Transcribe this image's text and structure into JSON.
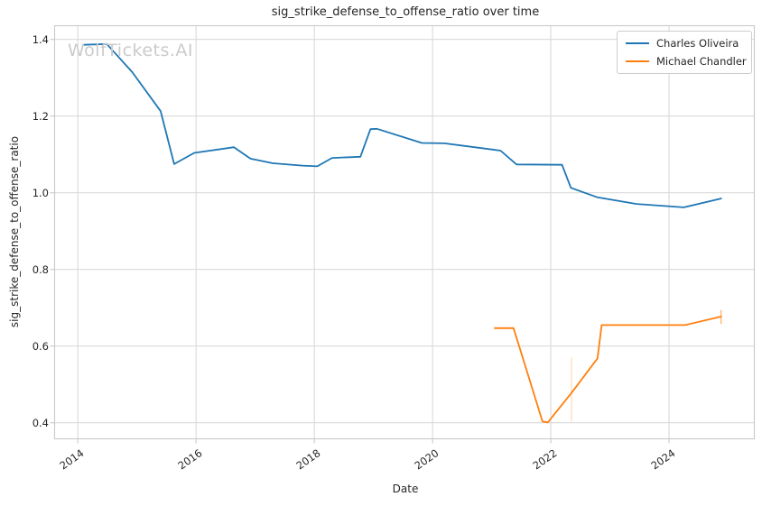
{
  "title": "sig_strike_defense_to_offense_ratio over time",
  "watermark": "WolfTickets.AI",
  "legend": {
    "items": [
      {
        "label": "Charles Oliveira",
        "color": "#1f77b4"
      },
      {
        "label": "Michael Chandler",
        "color": "#ff7f0e"
      }
    ]
  },
  "chart_data": {
    "type": "line",
    "title": "sig_strike_defense_to_offense_ratio over time",
    "xlabel": "Date",
    "ylabel": "sig_strike_defense_to_offense_ratio",
    "xlim": [
      2013.6,
      2025.45
    ],
    "ylim": [
      0.357,
      1.437
    ],
    "x_ticks": [
      2014,
      2016,
      2018,
      2020,
      2022,
      2024
    ],
    "y_ticks": [
      0.4,
      0.6,
      0.8,
      1.0,
      1.2,
      1.4
    ],
    "grid": true,
    "legend_position": "upper right",
    "colors": {
      "grid": "#d9d9d9",
      "spine": "#c9c9c9",
      "text": "#262626"
    },
    "series": [
      {
        "name": "Charles Oliveira",
        "color": "#1f77b4",
        "x": [
          2014.09,
          2014.49,
          2014.92,
          2015.4,
          2015.63,
          2015.97,
          2016.64,
          2016.92,
          2017.3,
          2017.8,
          2018.05,
          2018.3,
          2018.78,
          2018.95,
          2019.06,
          2019.82,
          2020.2,
          2021.0,
          2021.15,
          2021.42,
          2022.19,
          2022.34,
          2022.79,
          2023.45,
          2024.25,
          2024.88
        ],
        "y": [
          1.386,
          1.388,
          1.315,
          1.213,
          1.075,
          1.104,
          1.119,
          1.089,
          1.077,
          1.071,
          1.069,
          1.091,
          1.094,
          1.166,
          1.167,
          1.13,
          1.129,
          1.113,
          1.11,
          1.074,
          1.073,
          1.013,
          0.988,
          0.971,
          0.962,
          0.985
        ],
        "error_bars": []
      },
      {
        "name": "Michael Chandler",
        "color": "#ff7f0e",
        "x": [
          2021.05,
          2021.37,
          2021.86,
          2021.95,
          2022.35,
          2022.79,
          2022.86,
          2024.27,
          2024.88
        ],
        "y": [
          0.647,
          0.647,
          0.403,
          0.401,
          0.478,
          0.568,
          0.655,
          0.655,
          0.677
        ],
        "error_bars": [
          {
            "x": 2022.35,
            "y_low": 0.403,
            "y_high": 0.57,
            "opacity": 0.25
          },
          {
            "x": 2024.88,
            "y_low": 0.658,
            "y_high": 0.694,
            "opacity": 0.55
          }
        ]
      }
    ]
  }
}
